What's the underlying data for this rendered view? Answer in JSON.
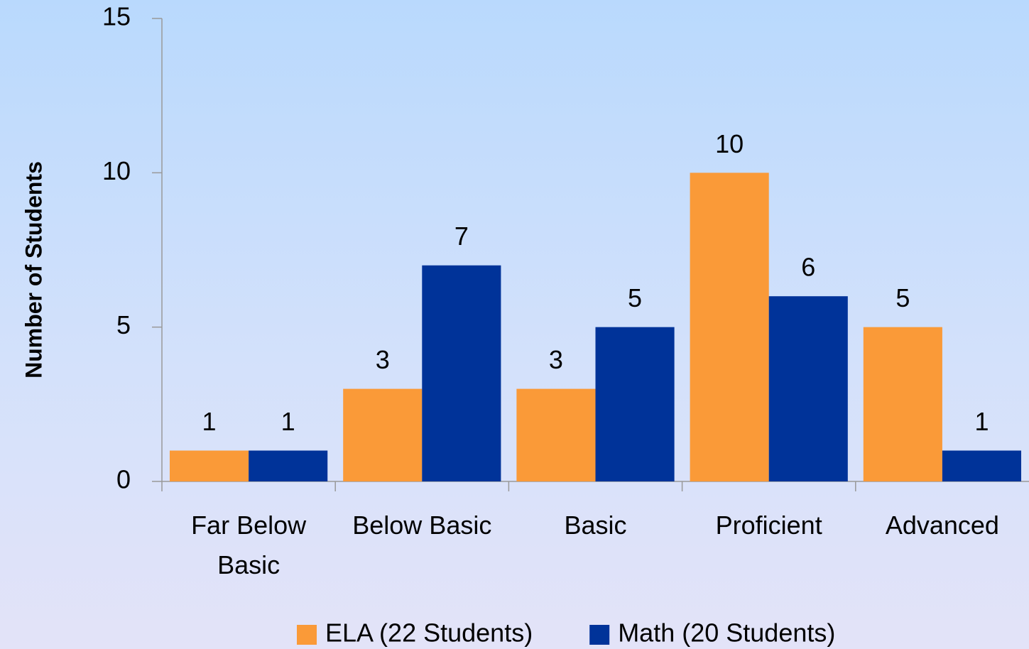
{
  "chart_data": {
    "type": "bar",
    "y_axis_label": "Number of Students",
    "categories": [
      "Far Below Basic",
      "Below Basic",
      "Basic",
      "Proficient",
      "Advanced"
    ],
    "series": [
      {
        "name": "ELA (22 Students)",
        "color": "#fa9a38",
        "values": [
          1,
          3,
          3,
          10,
          5
        ]
      },
      {
        "name": "Math (20 Students)",
        "color": "#003399",
        "values": [
          1,
          7,
          5,
          6,
          1
        ]
      }
    ],
    "ylim": [
      0,
      15
    ],
    "yticks": [
      0,
      5,
      10,
      15
    ],
    "grid": false,
    "legend": "bottom"
  }
}
